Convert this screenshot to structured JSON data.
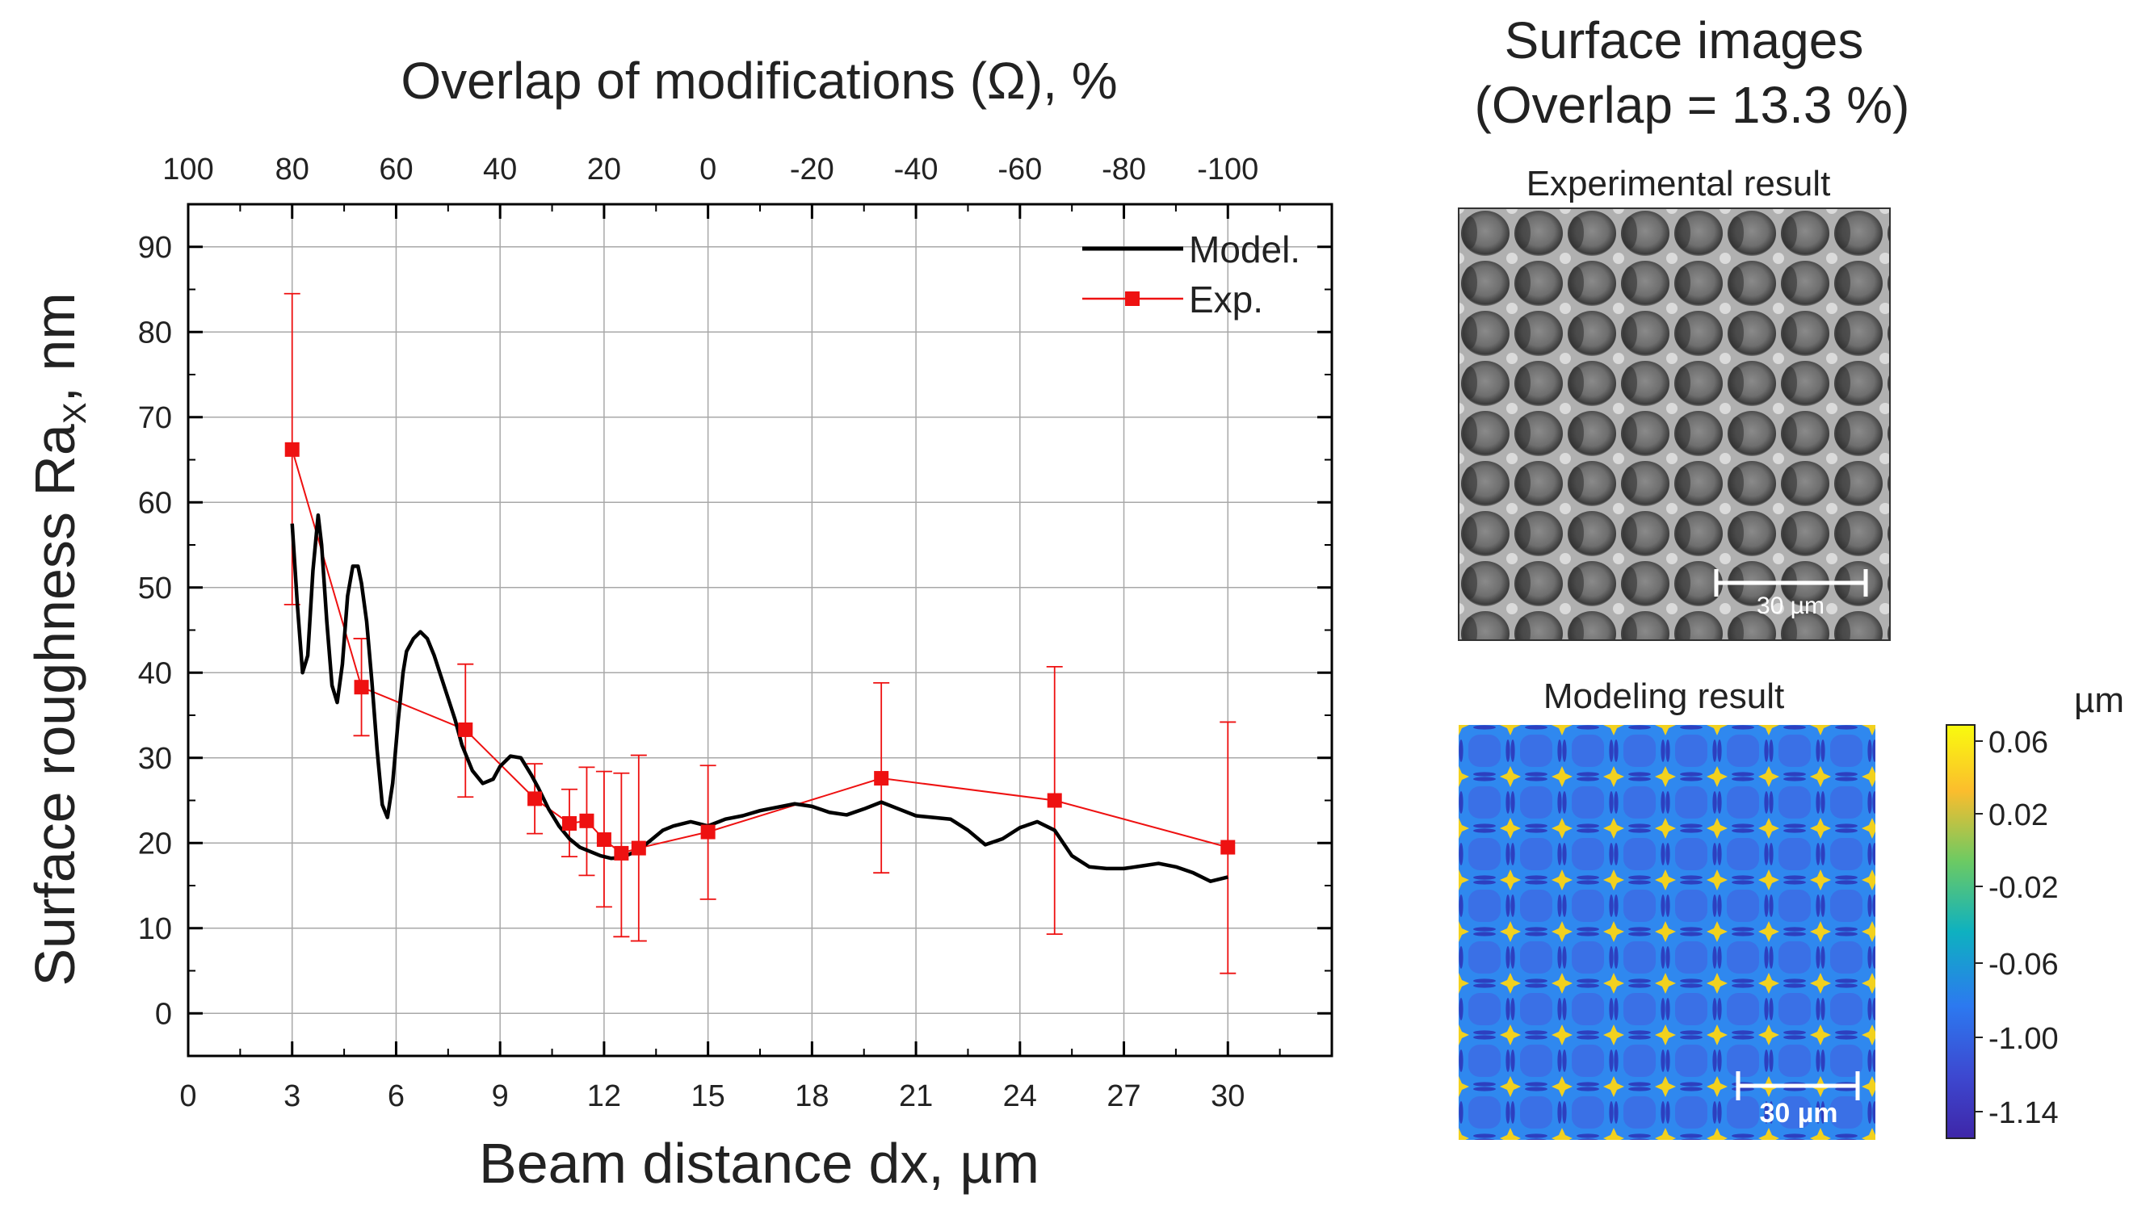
{
  "chart_data": {
    "type": "line",
    "title": "Overlap of modifications (Ω), %",
    "xlabel": "Beam distance dx, µm",
    "ylabel": "Surface roughness Ra",
    "ylabel_sub": "X",
    "ylabel_suffix": ", nm",
    "xlim": [
      0,
      33
    ],
    "ylim": [
      -5,
      95
    ],
    "x_ticks": [
      0,
      3,
      6,
      9,
      12,
      15,
      18,
      21,
      24,
      27,
      30
    ],
    "x_tick_labels": [
      "0",
      "3",
      "6",
      "9",
      "12",
      "15",
      "18",
      "21",
      "24",
      "27",
      "30"
    ],
    "y_ticks": [
      0,
      10,
      20,
      30,
      40,
      50,
      60,
      70,
      80,
      90
    ],
    "y_tick_labels": [
      "0",
      "10",
      "20",
      "30",
      "40",
      "50",
      "60",
      "70",
      "80",
      "90"
    ],
    "top_ticks": [
      0,
      3,
      6,
      9,
      12,
      15,
      18,
      21,
      24,
      27,
      30
    ],
    "top_tick_labels": [
      "100",
      "80",
      "60",
      "40",
      "20",
      "0",
      "-20",
      "-40",
      "-60",
      "-80",
      "-100"
    ],
    "grid": true,
    "legend_position": "top-right",
    "series": [
      {
        "name": "Model.",
        "color": "#000000",
        "x": [
          3.0,
          3.15,
          3.3,
          3.45,
          3.6,
          3.75,
          3.85,
          4.0,
          4.15,
          4.3,
          4.45,
          4.6,
          4.75,
          4.9,
          5.0,
          5.15,
          5.3,
          5.45,
          5.6,
          5.75,
          5.9,
          6.05,
          6.2,
          6.3,
          6.5,
          6.7,
          6.9,
          7.1,
          7.3,
          7.5,
          7.7,
          7.9,
          8.2,
          8.5,
          8.8,
          9.0,
          9.3,
          9.6,
          9.9,
          10.1,
          10.4,
          10.7,
          11.0,
          11.3,
          11.6,
          11.9,
          12.2,
          12.5,
          12.8,
          13.1,
          13.4,
          13.7,
          14.0,
          14.5,
          15.0,
          15.5,
          16.0,
          16.5,
          17.0,
          17.5,
          18.0,
          18.5,
          19.0,
          19.5,
          20.0,
          20.5,
          21.0,
          21.5,
          22.0,
          22.5,
          23.0,
          23.5,
          24.0,
          24.5,
          25.0,
          25.5,
          26.0,
          26.5,
          27.0,
          27.5,
          28.0,
          28.5,
          29.0,
          29.5,
          30.0
        ],
        "y": [
          57.5,
          48.0,
          40.0,
          42.0,
          52.0,
          58.5,
          55.0,
          46.0,
          38.5,
          36.5,
          41.0,
          49.0,
          52.5,
          52.5,
          50.5,
          46.0,
          39.0,
          31.0,
          24.5,
          23.0,
          27.0,
          34.0,
          40.0,
          42.5,
          44.0,
          44.8,
          44.0,
          42.0,
          39.5,
          37.0,
          34.5,
          31.5,
          28.5,
          27.0,
          27.5,
          29.0,
          30.2,
          30.0,
          28.0,
          26.5,
          24.0,
          22.0,
          20.5,
          19.5,
          19.0,
          18.5,
          18.2,
          18.3,
          18.8,
          19.5,
          20.5,
          21.5,
          22.0,
          22.5,
          22.0,
          22.8,
          23.2,
          23.8,
          24.2,
          24.6,
          24.3,
          23.6,
          23.3,
          24.0,
          24.8,
          24.0,
          23.2,
          23.0,
          22.8,
          21.5,
          19.8,
          20.5,
          21.8,
          22.5,
          21.5,
          18.5,
          17.2,
          17.0,
          17.0,
          17.3,
          17.6,
          17.2,
          16.5,
          15.5,
          16.0
        ]
      },
      {
        "name": "Exp.",
        "color": "#ee1111",
        "x": [
          3,
          5,
          8,
          10,
          11,
          11.5,
          12,
          12.5,
          13,
          15,
          20,
          25,
          30
        ],
        "y": [
          66.2,
          38.3,
          33.3,
          25.2,
          22.3,
          22.6,
          20.4,
          18.8,
          19.4,
          21.3,
          27.6,
          25.0,
          19.5
        ],
        "err_low": [
          48.0,
          32.6,
          25.4,
          21.1,
          18.4,
          16.2,
          12.5,
          9.0,
          8.5,
          13.4,
          16.5,
          9.3,
          4.7
        ],
        "err_high": [
          84.5,
          44.0,
          41.0,
          29.3,
          26.3,
          28.9,
          28.4,
          28.2,
          30.3,
          29.1,
          38.8,
          40.7,
          34.2
        ]
      }
    ]
  },
  "panel": {
    "title_line1": "Surface images",
    "title_line2": "(Overlap = 13.3 %)",
    "exp_label": "Experimental result",
    "exp_scale": "30 µm",
    "model_label": "Modeling result",
    "model_scale": "30 µm",
    "colorbar_unit": "µm",
    "colorbar_ticks": [
      "0.06",
      "0.02",
      "-0.02",
      "-0.06",
      "-1.00",
      "-1.14"
    ],
    "colorbar_colors": [
      "#f9fb0e",
      "#fbbd2d",
      "#6cca63",
      "#0eb1c0",
      "#2c79f0",
      "#3d48d0",
      "#3e26a8"
    ]
  }
}
